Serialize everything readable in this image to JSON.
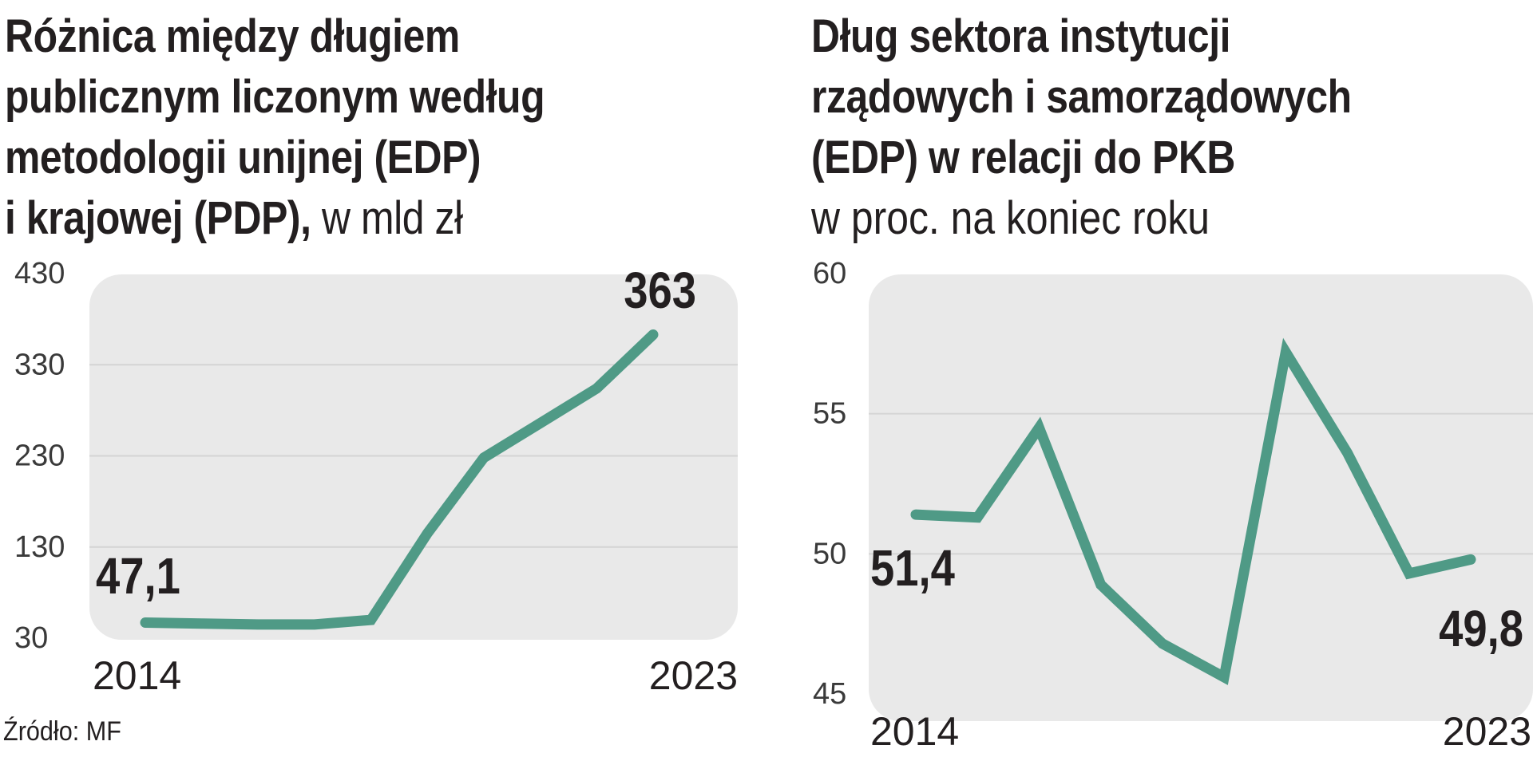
{
  "left": {
    "title_lines": [
      "Różnica między długiem",
      "publicznym liczonym według",
      "metodologii  unijnej (EDP)",
      "i krajowej (PDP),"
    ],
    "title_suffix": " w mld zł",
    "source": "Źródło: MF"
  },
  "right": {
    "title_lines": [
      "Dług sektora instytucji",
      "rządowych i samorządowych",
      "(EDP) w relacji do PKB"
    ],
    "subtitle": "w proc. na koniec roku"
  },
  "colors": {
    "line": "#4f9a86",
    "plot_bg": "#e9e9e9",
    "grid": "#d4d4d4",
    "text": "#231f20"
  },
  "chart_data": [
    {
      "type": "line",
      "x": [
        2014,
        2015,
        2016,
        2017,
        2018,
        2019,
        2020,
        2021,
        2022,
        2023
      ],
      "values": [
        47.1,
        46,
        45,
        45,
        50,
        145,
        228,
        266,
        304,
        363
      ],
      "yticks": [
        "430",
        "330",
        "230",
        "130",
        "30"
      ],
      "ylim": [
        30,
        430
      ],
      "grid": true,
      "x_labels": [
        "2014",
        "2023"
      ],
      "annotations": [
        "47,1",
        "363"
      ]
    },
    {
      "type": "line",
      "x": [
        2014,
        2015,
        2016,
        2017,
        2018,
        2019,
        2020,
        2021,
        2022,
        2023
      ],
      "values": [
        51.4,
        51.3,
        54.5,
        48.9,
        46.8,
        45.6,
        57.2,
        53.6,
        49.3,
        49.8
      ],
      "yticks": [
        "60",
        "55",
        "50",
        "45"
      ],
      "ylim": [
        45,
        60
      ],
      "grid": true,
      "x_labels": [
        "2014",
        "2023"
      ],
      "annotations": [
        "51,4",
        "49,8"
      ]
    }
  ]
}
